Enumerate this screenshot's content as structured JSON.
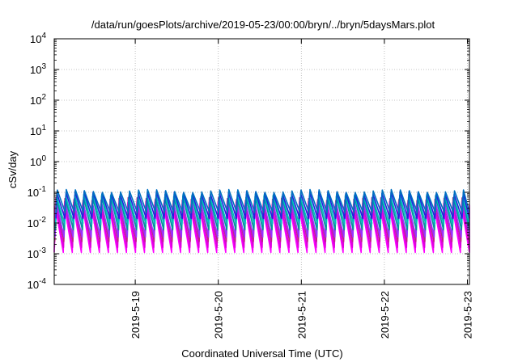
{
  "chart_data": {
    "type": "line",
    "title": "/data/run/goesPlots/archive/2019-05-23/00:00/bryn/../bryn/5daysMars.plot",
    "xlabel": "Coordinated Universal Time (UTC)",
    "ylabel": "cSv/day",
    "yscale": "log",
    "ylim": [
      0.0001,
      10000
    ],
    "y_ticks": [
      {
        "value": 0.0001,
        "base": "10",
        "exp": "-4"
      },
      {
        "value": 0.001,
        "base": "10",
        "exp": "-3"
      },
      {
        "value": 0.01,
        "base": "10",
        "exp": "-2"
      },
      {
        "value": 0.1,
        "base": "10",
        "exp": "-1"
      },
      {
        "value": 1,
        "base": "10",
        "exp": "0"
      },
      {
        "value": 10,
        "base": "10",
        "exp": "1"
      },
      {
        "value": 100,
        "base": "10",
        "exp": "2"
      },
      {
        "value": 1000,
        "base": "10",
        "exp": "3"
      },
      {
        "value": 10000,
        "base": "10",
        "exp": "4"
      }
    ],
    "xlim": [
      "2019-05-18 00:35",
      "2019-05-23 00:35"
    ],
    "x_ticks": [
      "2019-5-19",
      "2019-5-20",
      "2019-5-21",
      "2019-5-22",
      "2019-5-23"
    ],
    "grid": true,
    "legend": "none",
    "pattern": {
      "description": "Sawtooth oscillation roughly 9 cycles per day",
      "cycles_per_day": 9.1,
      "series_peak_range": [
        0.02,
        0.12
      ],
      "series_trough_range": [
        0.001,
        0.03
      ]
    },
    "series": [
      {
        "color": "#ff00ff",
        "peak": 0.035,
        "trough": 0.0011
      },
      {
        "color": "#dd00dd",
        "peak": 0.045,
        "trough": 0.0016
      },
      {
        "color": "#c0208a",
        "peak": 0.06,
        "trough": 0.0025
      },
      {
        "color": "#9933ff",
        "peak": 0.05,
        "trough": 0.0035
      },
      {
        "color": "#009999",
        "peak": 0.07,
        "trough": 0.006
      },
      {
        "color": "#00bfbf",
        "peak": 0.08,
        "trough": 0.009
      },
      {
        "color": "#2222dd",
        "peak": 0.095,
        "trough": 0.014
      },
      {
        "color": "#0070c0",
        "peak": 0.11,
        "trough": 0.022
      }
    ]
  }
}
